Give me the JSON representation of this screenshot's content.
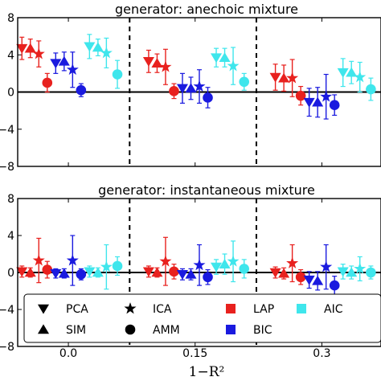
{
  "chart_data": [
    {
      "type": "scatter",
      "title": "generator: anechoic mixture",
      "ylim": [
        -8,
        8
      ],
      "yticks": [
        "8",
        "4",
        "0",
        "−4",
        "−8"
      ],
      "ytick_values": [
        8,
        4,
        0,
        -4,
        -8
      ],
      "xlim": [
        -0.06,
        0.37
      ],
      "dividers": [
        0.0725,
        0.2225
      ],
      "groups": [
        {
          "x_center": 0.0,
          "points": [
            {
              "method": "PCA",
              "criterion": "LAP",
              "y": 4.7,
              "err": 1.2
            },
            {
              "method": "SIM",
              "criterion": "LAP",
              "y": 4.7,
              "err": 1.0
            },
            {
              "method": "ICA",
              "criterion": "LAP",
              "y": 4.1,
              "err": 1.4
            },
            {
              "method": "AMM",
              "criterion": "LAP",
              "y": 1.0,
              "err": 1.0
            },
            {
              "method": "PCA",
              "criterion": "BIC",
              "y": 3.1,
              "err": 1.1
            },
            {
              "method": "SIM",
              "criterion": "BIC",
              "y": 3.3,
              "err": 1.0
            },
            {
              "method": "ICA",
              "criterion": "BIC",
              "y": 2.4,
              "err": 1.9
            },
            {
              "method": "AMM",
              "criterion": "BIC",
              "y": 0.2,
              "err": 0.7
            },
            {
              "method": "PCA",
              "criterion": "AIC",
              "y": 4.9,
              "err": 1.3
            },
            {
              "method": "SIM",
              "criterion": "AIC",
              "y": 4.8,
              "err": 0.9
            },
            {
              "method": "ICA",
              "criterion": "AIC",
              "y": 4.2,
              "err": 1.6
            },
            {
              "method": "AMM",
              "criterion": "AIC",
              "y": 1.9,
              "err": 1.5
            }
          ]
        },
        {
          "x_center": 0.15,
          "points": [
            {
              "method": "PCA",
              "criterion": "LAP",
              "y": 3.3,
              "err": 1.2
            },
            {
              "method": "SIM",
              "criterion": "LAP",
              "y": 3.1,
              "err": 1.0
            },
            {
              "method": "ICA",
              "criterion": "LAP",
              "y": 2.7,
              "err": 1.9
            },
            {
              "method": "AMM",
              "criterion": "LAP",
              "y": 0.1,
              "err": 0.8
            },
            {
              "method": "PCA",
              "criterion": "BIC",
              "y": 0.4,
              "err": 1.6
            },
            {
              "method": "SIM",
              "criterion": "BIC",
              "y": 0.4,
              "err": 1.2
            },
            {
              "method": "ICA",
              "criterion": "BIC",
              "y": 0.6,
              "err": 1.8
            },
            {
              "method": "AMM",
              "criterion": "BIC",
              "y": -0.6,
              "err": 1.1
            },
            {
              "method": "PCA",
              "criterion": "AIC",
              "y": 3.7,
              "err": 1.0
            },
            {
              "method": "SIM",
              "criterion": "AIC",
              "y": 3.7,
              "err": 1.0
            },
            {
              "method": "ICA",
              "criterion": "AIC",
              "y": 2.8,
              "err": 2.0
            },
            {
              "method": "AMM",
              "criterion": "AIC",
              "y": 1.1,
              "err": 0.9
            }
          ]
        },
        {
          "x_center": 0.3,
          "points": [
            {
              "method": "PCA",
              "criterion": "LAP",
              "y": 1.6,
              "err": 1.4
            },
            {
              "method": "SIM",
              "criterion": "LAP",
              "y": 1.5,
              "err": 1.4
            },
            {
              "method": "ICA",
              "criterion": "LAP",
              "y": 1.5,
              "err": 2.0
            },
            {
              "method": "AMM",
              "criterion": "LAP",
              "y": -0.4,
              "err": 1.0
            },
            {
              "method": "PCA",
              "criterion": "BIC",
              "y": -1.1,
              "err": 1.5
            },
            {
              "method": "SIM",
              "criterion": "BIC",
              "y": -1.1,
              "err": 1.6
            },
            {
              "method": "ICA",
              "criterion": "BIC",
              "y": -0.5,
              "err": 2.4
            },
            {
              "method": "AMM",
              "criterion": "BIC",
              "y": -1.4,
              "err": 1.1
            },
            {
              "method": "PCA",
              "criterion": "AIC",
              "y": 2.1,
              "err": 1.5
            },
            {
              "method": "SIM",
              "criterion": "AIC",
              "y": 2.1,
              "err": 1.2
            },
            {
              "method": "ICA",
              "criterion": "AIC",
              "y": 1.6,
              "err": 1.6
            },
            {
              "method": "AMM",
              "criterion": "AIC",
              "y": 0.3,
              "err": 1.2
            }
          ]
        }
      ]
    },
    {
      "type": "scatter",
      "title": "generator: instantaneous mixture",
      "ylim": [
        -8,
        8
      ],
      "yticks": [
        "8",
        "4",
        "0",
        "−4",
        "−8"
      ],
      "ytick_values": [
        8,
        4,
        0,
        -4,
        -8
      ],
      "xlim": [
        -0.06,
        0.37
      ],
      "dividers": [
        0.0725,
        0.2225
      ],
      "groups": [
        {
          "x_center": 0.0,
          "points": [
            {
              "method": "PCA",
              "criterion": "LAP",
              "y": 0.1,
              "err": 0.6
            },
            {
              "method": "SIM",
              "criterion": "LAP",
              "y": 0.0,
              "err": 0.5
            },
            {
              "method": "ICA",
              "criterion": "LAP",
              "y": 1.3,
              "err": 2.4
            },
            {
              "method": "AMM",
              "criterion": "LAP",
              "y": 0.3,
              "err": 0.9
            },
            {
              "method": "PCA",
              "criterion": "BIC",
              "y": -0.1,
              "err": 0.5
            },
            {
              "method": "SIM",
              "criterion": "BIC",
              "y": -0.1,
              "err": 0.5
            },
            {
              "method": "ICA",
              "criterion": "BIC",
              "y": 1.3,
              "err": 2.7
            },
            {
              "method": "AMM",
              "criterion": "BIC",
              "y": -0.2,
              "err": 0.6
            },
            {
              "method": "PCA",
              "criterion": "AIC",
              "y": 0.1,
              "err": 0.6
            },
            {
              "method": "SIM",
              "criterion": "AIC",
              "y": 0.0,
              "err": 0.5
            },
            {
              "method": "ICA",
              "criterion": "AIC",
              "y": 0.6,
              "err": 2.4
            },
            {
              "method": "AMM",
              "criterion": "AIC",
              "y": 0.7,
              "err": 1.0
            }
          ]
        },
        {
          "x_center": 0.15,
          "points": [
            {
              "method": "PCA",
              "criterion": "LAP",
              "y": 0.1,
              "err": 0.6
            },
            {
              "method": "SIM",
              "criterion": "LAP",
              "y": 0.0,
              "err": 0.5
            },
            {
              "method": "ICA",
              "criterion": "LAP",
              "y": 1.2,
              "err": 2.6
            },
            {
              "method": "AMM",
              "criterion": "LAP",
              "y": 0.1,
              "err": 0.8
            },
            {
              "method": "PCA",
              "criterion": "BIC",
              "y": -0.2,
              "err": 0.6
            },
            {
              "method": "SIM",
              "criterion": "BIC",
              "y": -0.2,
              "err": 0.6
            },
            {
              "method": "ICA",
              "criterion": "BIC",
              "y": 0.8,
              "err": 2.2
            },
            {
              "method": "AMM",
              "criterion": "BIC",
              "y": -0.5,
              "err": 0.8
            },
            {
              "method": "PCA",
              "criterion": "AIC",
              "y": 0.6,
              "err": 0.8
            },
            {
              "method": "SIM",
              "criterion": "AIC",
              "y": 0.9,
              "err": 1.1
            },
            {
              "method": "ICA",
              "criterion": "AIC",
              "y": 1.2,
              "err": 2.2
            },
            {
              "method": "AMM",
              "criterion": "AIC",
              "y": 0.4,
              "err": 1.0
            }
          ]
        },
        {
          "x_center": 0.3,
          "points": [
            {
              "method": "PCA",
              "criterion": "LAP",
              "y": 0.0,
              "err": 0.6
            },
            {
              "method": "SIM",
              "criterion": "LAP",
              "y": -0.1,
              "err": 0.6
            },
            {
              "method": "ICA",
              "criterion": "LAP",
              "y": 1.0,
              "err": 2.0
            },
            {
              "method": "AMM",
              "criterion": "LAP",
              "y": -0.5,
              "err": 0.8
            },
            {
              "method": "PCA",
              "criterion": "BIC",
              "y": -0.8,
              "err": 0.9
            },
            {
              "method": "SIM",
              "criterion": "BIC",
              "y": -0.9,
              "err": 1.0
            },
            {
              "method": "ICA",
              "criterion": "BIC",
              "y": 0.6,
              "err": 2.4
            },
            {
              "method": "AMM",
              "criterion": "BIC",
              "y": -1.4,
              "err": 1.0
            },
            {
              "method": "PCA",
              "criterion": "AIC",
              "y": 0.1,
              "err": 0.8
            },
            {
              "method": "SIM",
              "criterion": "AIC",
              "y": 0.0,
              "err": 0.7
            },
            {
              "method": "ICA",
              "criterion": "AIC",
              "y": 0.4,
              "err": 1.3
            },
            {
              "method": "AMM",
              "criterion": "AIC",
              "y": 0.0,
              "err": 0.7
            }
          ]
        }
      ]
    }
  ],
  "x_axis": {
    "ticks": [
      "0.0",
      "0.15",
      "0.3"
    ],
    "tick_values": [
      0.0,
      0.15,
      0.3
    ],
    "label": "1−R²"
  },
  "legend": {
    "placement": "bottom panel, lower area",
    "methods": [
      {
        "name": "PCA",
        "marker": "triangle-down-icon"
      },
      {
        "name": "SIM",
        "marker": "triangle-up-icon"
      },
      {
        "name": "ICA",
        "marker": "star-icon"
      },
      {
        "name": "AMM",
        "marker": "circle-icon"
      }
    ],
    "criteria": [
      {
        "name": "LAP",
        "color": "#e8211e"
      },
      {
        "name": "BIC",
        "color": "#1a1adf"
      },
      {
        "name": "AIC",
        "color": "#3fe6ec"
      }
    ]
  },
  "colors": {
    "LAP": "#e8211e",
    "BIC": "#1a1adf",
    "AIC": "#3fe6ec"
  }
}
